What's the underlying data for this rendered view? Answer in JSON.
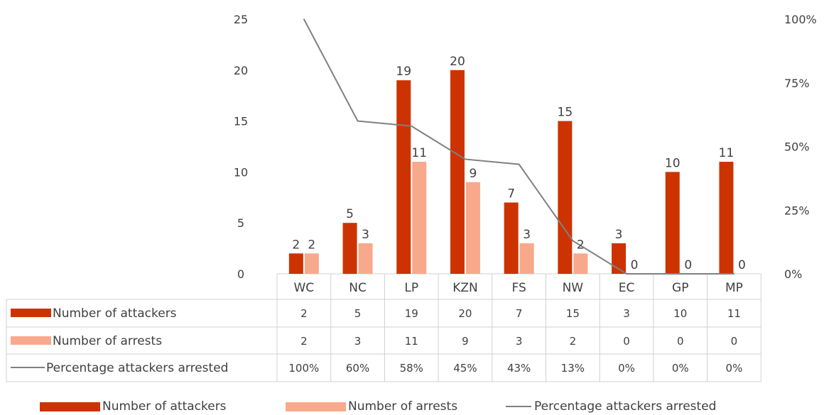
{
  "chart_data": {
    "type": "bar",
    "categories": [
      "WC",
      "NC",
      "LP",
      "KZN",
      "FS",
      "NW",
      "EC",
      "GP",
      "MP"
    ],
    "series": [
      {
        "name": "Number of attackers",
        "kind": "bar",
        "axis": "left",
        "color": "#cc3300",
        "values": [
          2,
          5,
          19,
          20,
          7,
          15,
          3,
          10,
          11
        ],
        "table_labels": [
          "2",
          "5",
          "19",
          "20",
          "7",
          "15",
          "3",
          "10",
          "11"
        ]
      },
      {
        "name": "Number of arrests",
        "kind": "bar",
        "axis": "left",
        "color": "#f8a98c",
        "values": [
          2,
          3,
          11,
          9,
          3,
          2,
          0,
          0,
          0
        ],
        "table_labels": [
          "2",
          "3",
          "11",
          "9",
          "3",
          "2",
          "0",
          "0",
          "0"
        ]
      },
      {
        "name": "Percentage attackers arrested",
        "kind": "line",
        "axis": "right",
        "color": "#808080",
        "values": [
          100,
          60,
          58,
          45,
          43,
          13,
          0,
          0,
          0
        ],
        "table_labels": [
          "100%",
          "60%",
          "58%",
          "45%",
          "43%",
          "13%",
          "0%",
          "0%",
          "0%"
        ]
      }
    ],
    "y_left": {
      "ylim": [
        0,
        25
      ],
      "ticks": [
        "0",
        "5",
        "10",
        "15",
        "20",
        "25"
      ]
    },
    "y_right": {
      "ylim": [
        0,
        100
      ],
      "ticks": [
        "0%",
        "25%",
        "50%",
        "75%",
        "100%"
      ]
    },
    "data_labels": [
      [
        "2",
        "5",
        "19",
        "20",
        "7",
        "15",
        "3",
        "10",
        "11"
      ],
      [
        "2",
        "3",
        "11",
        "9",
        "3",
        "2",
        "0",
        "0",
        "0"
      ]
    ],
    "grid": false,
    "legend_position": "bottom",
    "data_table": true
  }
}
